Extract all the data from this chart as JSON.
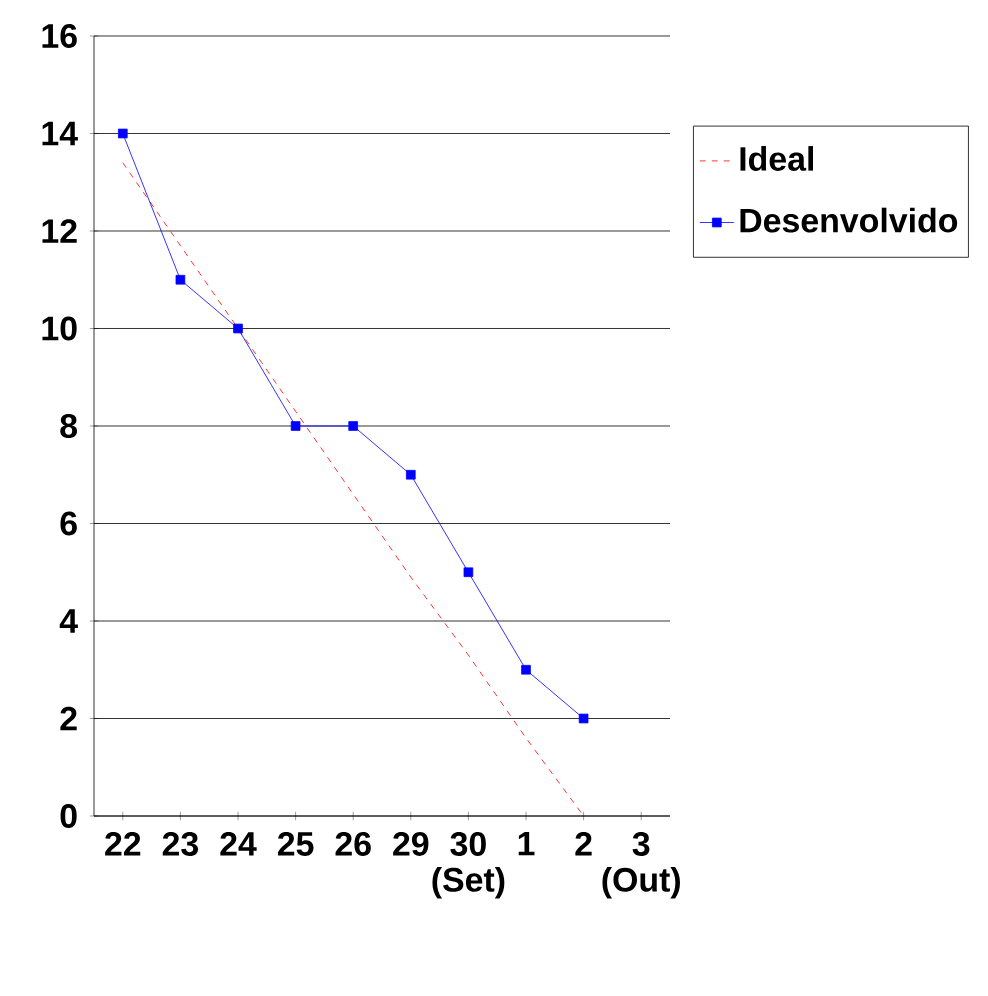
{
  "chart_data": {
    "type": "line",
    "categories": [
      "22",
      "23",
      "24",
      "25",
      "26",
      "29",
      "30 (Set)",
      "1",
      "2",
      "3 (Out)"
    ],
    "series": [
      {
        "name": "Ideal",
        "color": "#ff0000",
        "line_style": "dashed",
        "values": [
          13.4,
          11.7,
          10.0,
          8.3,
          6.6,
          4.9,
          3.3,
          1.6,
          0,
          null
        ]
      },
      {
        "name": "Desenvolvido",
        "color": "#0000ff",
        "line_style": "solid",
        "marker": "square",
        "values": [
          14,
          11,
          10,
          8,
          8,
          7,
          5,
          3,
          2,
          null
        ]
      }
    ],
    "ylim": [
      0,
      16
    ],
    "yticks": [
      0,
      2,
      4,
      6,
      8,
      10,
      12,
      14,
      16
    ],
    "grid": "y",
    "legend": "right"
  }
}
